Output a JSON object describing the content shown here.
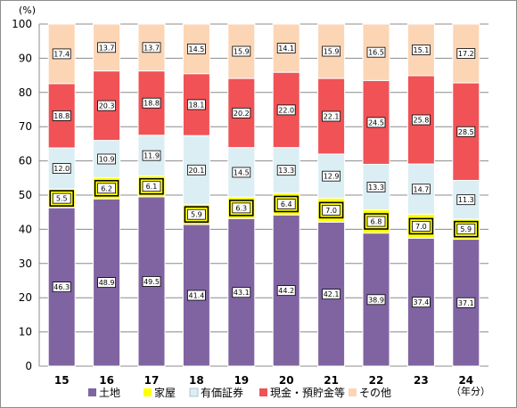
{
  "chart_data": {
    "type": "bar",
    "stacked": true,
    "y_unit_label": "(%)",
    "x_unit_label": "（年分）",
    "ylim": [
      0,
      100
    ],
    "yticks": [
      0,
      10,
      20,
      30,
      40,
      50,
      60,
      70,
      80,
      90,
      100
    ],
    "grid": true,
    "legend_position": "bottom",
    "categories": [
      "15",
      "16",
      "17",
      "18",
      "19",
      "20",
      "21",
      "22",
      "23",
      "24"
    ],
    "series": [
      {
        "name": "土地",
        "color": "#8064a2",
        "label_style": "white-box",
        "values": [
          46.3,
          48.9,
          49.5,
          41.4,
          43.1,
          44.2,
          42.1,
          38.9,
          37.4,
          37.1
        ]
      },
      {
        "name": "家屋",
        "color": "#ffff00",
        "label_style": "yellow-highlight",
        "values": [
          5.5,
          6.2,
          6.1,
          5.9,
          6.3,
          6.4,
          7.0,
          6.8,
          7.0,
          5.9
        ]
      },
      {
        "name": "有価証券",
        "color": "#dbeef4",
        "label_style": "white-box",
        "values": [
          12.0,
          10.9,
          11.9,
          20.1,
          14.5,
          13.3,
          12.9,
          13.3,
          14.7,
          11.3
        ]
      },
      {
        "name": "現金・預貯金等",
        "color": "#f05256",
        "label_style": "white-box",
        "values": [
          18.8,
          20.3,
          18.8,
          18.1,
          20.2,
          22.0,
          22.1,
          24.5,
          25.8,
          28.5
        ]
      },
      {
        "name": "その他",
        "color": "#fcd5b5",
        "label_style": "white-box",
        "values": [
          17.4,
          13.7,
          13.7,
          14.5,
          15.9,
          14.1,
          15.9,
          16.5,
          15.1,
          17.2
        ]
      }
    ]
  }
}
